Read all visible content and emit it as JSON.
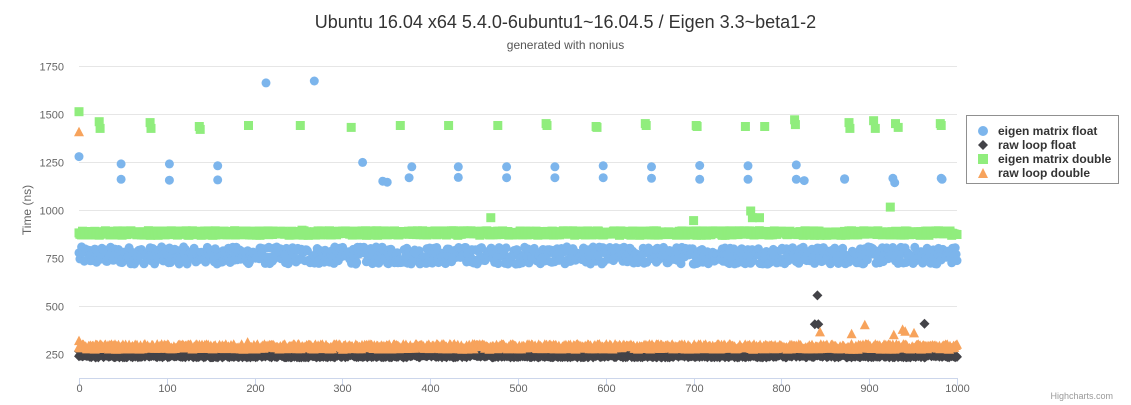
{
  "title": "Ubuntu 16.04 x64 5.4.0-6ubuntu1~16.04.5 / Eigen 3.3~beta1-2",
  "subtitle": "generated with nonius",
  "credits": "Highcharts.com",
  "chart_data": {
    "type": "scatter",
    "title": "Ubuntu 16.04 x64 5.4.0-6ubuntu1~16.04.5 / Eigen 3.3~beta1-2",
    "subtitle": "generated with nonius",
    "xlabel": "",
    "ylabel": "Time (ns)",
    "xlim": [
      0,
      1000
    ],
    "ylim": [
      125,
      1875
    ],
    "x_ticks": [
      "0",
      "100",
      "200",
      "300",
      "400",
      "500",
      "600",
      "700",
      "800",
      "900",
      "1000"
    ],
    "y_ticks": [
      "250",
      "500",
      "750",
      "1000",
      "1250",
      "1500",
      "1750"
    ],
    "grid": "horizontal",
    "legend_position": "right",
    "series": [
      {
        "name": "eigen matrix float",
        "color": "#7cb5ec",
        "marker": "circle",
        "band": {
          "n": 1000,
          "low": 718,
          "high": 808
        },
        "outliers": [
          [
            0,
            1278
          ],
          [
            48,
            1240
          ],
          [
            48,
            1160
          ],
          [
            103,
            1240
          ],
          [
            103,
            1155
          ],
          [
            158,
            1230
          ],
          [
            158,
            1157
          ],
          [
            213,
            1662
          ],
          [
            268,
            1672
          ],
          [
            323,
            1248
          ],
          [
            346,
            1150
          ],
          [
            351,
            1145
          ],
          [
            376,
            1168
          ],
          [
            379,
            1225
          ],
          [
            432,
            1225
          ],
          [
            432,
            1170
          ],
          [
            487,
            1225
          ],
          [
            487,
            1168
          ],
          [
            542,
            1225
          ],
          [
            542,
            1168
          ],
          [
            597,
            1230
          ],
          [
            597,
            1168
          ],
          [
            652,
            1225
          ],
          [
            652,
            1165
          ],
          [
            707,
            1232
          ],
          [
            707,
            1160
          ],
          [
            762,
            1230
          ],
          [
            762,
            1160
          ],
          [
            817,
            1235
          ],
          [
            817,
            1160
          ],
          [
            826,
            1153
          ],
          [
            872,
            1163
          ],
          [
            872,
            1160
          ],
          [
            927,
            1165
          ],
          [
            929,
            1142
          ],
          [
            982,
            1165
          ],
          [
            983,
            1160
          ]
        ]
      },
      {
        "name": "raw loop float",
        "color": "#434348",
        "marker": "diamond",
        "band": {
          "n": 1000,
          "low": 232,
          "high": 248
        },
        "outliers": [
          [
            0,
            265
          ],
          [
            838,
            405
          ],
          [
            842,
            405
          ],
          [
            841,
            555
          ],
          [
            963,
            408
          ]
        ]
      },
      {
        "name": "eigen matrix double",
        "color": "#90ed7d",
        "marker": "square",
        "band": {
          "n": 1000,
          "low": 868,
          "high": 892
        },
        "outliers": [
          [
            0,
            1512
          ],
          [
            23,
            1460
          ],
          [
            24,
            1425
          ],
          [
            81,
            1455
          ],
          [
            82,
            1425
          ],
          [
            137,
            1435
          ],
          [
            138,
            1420
          ],
          [
            193,
            1440
          ],
          [
            252,
            1440
          ],
          [
            254,
            895
          ],
          [
            310,
            1430
          ],
          [
            366,
            1440
          ],
          [
            421,
            1440
          ],
          [
            469,
            960
          ],
          [
            477,
            1440
          ],
          [
            532,
            1450
          ],
          [
            533,
            1440
          ],
          [
            589,
            1435
          ],
          [
            590,
            1430
          ],
          [
            645,
            1450
          ],
          [
            646,
            1440
          ],
          [
            700,
            945
          ],
          [
            703,
            1440
          ],
          [
            704,
            1435
          ],
          [
            759,
            1435
          ],
          [
            765,
            995
          ],
          [
            767,
            960
          ],
          [
            775,
            960
          ],
          [
            781,
            1435
          ],
          [
            815,
            1470
          ],
          [
            816,
            1445
          ],
          [
            877,
            1455
          ],
          [
            878,
            1425
          ],
          [
            905,
            1465
          ],
          [
            907,
            1425
          ],
          [
            924,
            1015
          ],
          [
            930,
            1450
          ],
          [
            933,
            1430
          ],
          [
            981,
            1450
          ],
          [
            982,
            1440
          ]
        ]
      },
      {
        "name": "raw loop double",
        "color": "#f7a35c",
        "marker": "triangle",
        "band": {
          "n": 1000,
          "low": 275,
          "high": 302
        },
        "outliers": [
          [
            0,
            1408
          ],
          [
            0,
            320
          ],
          [
            192,
            312
          ],
          [
            844,
            365
          ],
          [
            880,
            355
          ],
          [
            895,
            402
          ],
          [
            928,
            350
          ],
          [
            938,
            378
          ],
          [
            941,
            368
          ],
          [
            951,
            360
          ]
        ]
      }
    ]
  }
}
